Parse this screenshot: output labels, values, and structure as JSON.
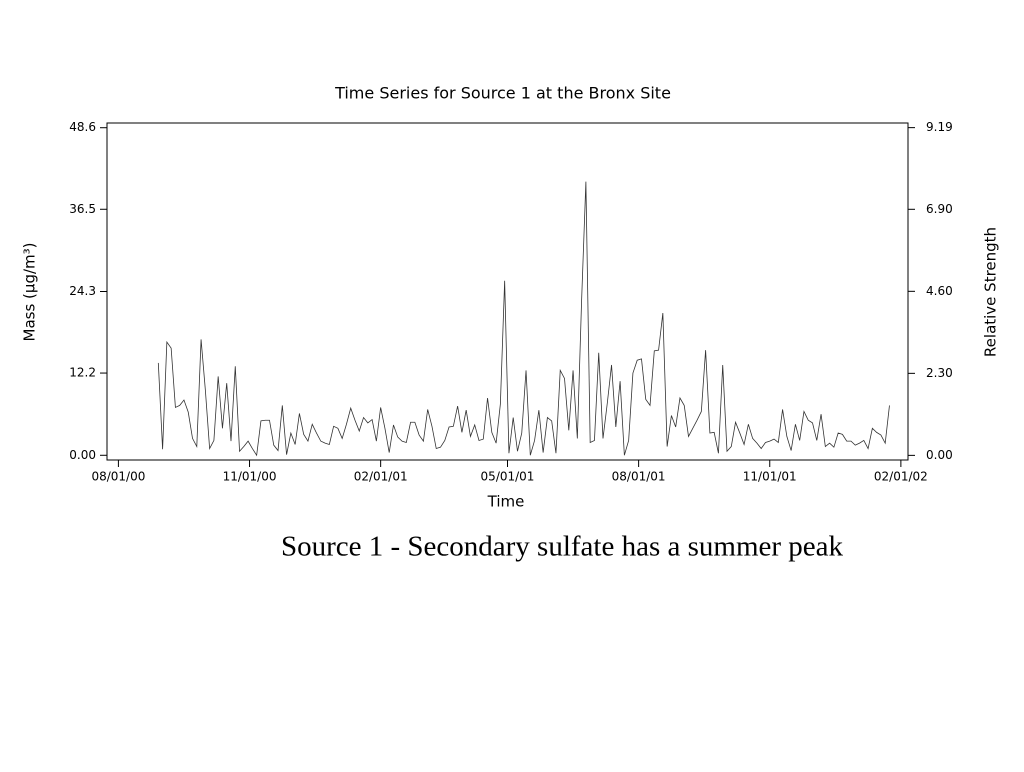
{
  "chart_data": {
    "type": "line",
    "title": "Time Series for Source 1 at the Bronx Site",
    "x_label": "Time",
    "y_label": "Mass (μg/m³)",
    "y2_label": "Relative Strength",
    "color": "#333333",
    "xlim": [
      "2000-07-24",
      "2002-02-06"
    ],
    "xticks": [
      {
        "value": "2000-08-01",
        "label": "08/01/00"
      },
      {
        "value": "2000-11-01",
        "label": "11/01/00"
      },
      {
        "value": "2001-02-01",
        "label": "02/01/01"
      },
      {
        "value": "2001-05-01",
        "label": "05/01/01"
      },
      {
        "value": "2001-08-01",
        "label": "08/01/01"
      },
      {
        "value": "2001-11-01",
        "label": "11/01/01"
      },
      {
        "value": "2002-02-01",
        "label": "02/01/02"
      }
    ],
    "ylim": [
      -0.7,
      49.3
    ],
    "yticks": [
      {
        "value": 0,
        "label": "0.00"
      },
      12.2,
      24.3,
      36.5,
      48.6
    ],
    "y2lim": [
      -0.13,
      9.32
    ],
    "y2ticks": [
      {
        "value": 0,
        "label": "0.00"
      },
      {
        "value": 2.3,
        "label": "2.30"
      },
      {
        "value": 4.6,
        "label": "4.60"
      },
      {
        "value": 6.9,
        "label": "6.90"
      },
      9.19
    ],
    "x": [
      "2000-08-29",
      "2000-09-01",
      "2000-09-04",
      "2000-09-07",
      "2000-09-10",
      "2000-09-13",
      "2000-09-16",
      "2000-09-19",
      "2000-09-22",
      "2000-09-25",
      "2000-09-28",
      "2000-10-01",
      "2000-10-04",
      "2000-10-07",
      "2000-10-10",
      "2000-10-13",
      "2000-10-16",
      "2000-10-19",
      "2000-10-22",
      "2000-10-25",
      "2000-10-28",
      "2000-10-31",
      "2000-11-03",
      "2000-11-06",
      "2000-11-09",
      "2000-11-12",
      "2000-11-15",
      "2000-11-18",
      "2000-11-21",
      "2000-11-24",
      "2000-11-27",
      "2000-11-30",
      "2000-12-03",
      "2000-12-06",
      "2000-12-09",
      "2000-12-12",
      "2000-12-15",
      "2000-12-18",
      "2000-12-21",
      "2000-12-24",
      "2000-12-27",
      "2000-12-30",
      "2001-01-02",
      "2001-01-05",
      "2001-01-08",
      "2001-01-11",
      "2001-01-14",
      "2001-01-17",
      "2001-01-20",
      "2001-01-23",
      "2001-01-26",
      "2001-01-29",
      "2001-02-01",
      "2001-02-04",
      "2001-02-07",
      "2001-02-10",
      "2001-02-13",
      "2001-02-16",
      "2001-02-19",
      "2001-02-22",
      "2001-02-25",
      "2001-02-28",
      "2001-03-03",
      "2001-03-06",
      "2001-03-09",
      "2001-03-12",
      "2001-03-15",
      "2001-03-18",
      "2001-03-21",
      "2001-03-24",
      "2001-03-27",
      "2001-03-30",
      "2001-04-02",
      "2001-04-05",
      "2001-04-08",
      "2001-04-11",
      "2001-04-14",
      "2001-04-17",
      "2001-04-20",
      "2001-04-23",
      "2001-04-26",
      "2001-04-29",
      "2001-05-02",
      "2001-05-05",
      "2001-05-08",
      "2001-05-11",
      "2001-05-14",
      "2001-05-17",
      "2001-05-20",
      "2001-05-23",
      "2001-05-26",
      "2001-05-29",
      "2001-06-01",
      "2001-06-04",
      "2001-06-07",
      "2001-06-10",
      "2001-06-13",
      "2001-06-16",
      "2001-06-19",
      "2001-06-22",
      "2001-06-25",
      "2001-06-28",
      "2001-07-01",
      "2001-07-04",
      "2001-07-07",
      "2001-07-10",
      "2001-07-13",
      "2001-07-16",
      "2001-07-19",
      "2001-07-22",
      "2001-07-25",
      "2001-07-28",
      "2001-07-31",
      "2001-08-03",
      "2001-08-06",
      "2001-08-09",
      "2001-08-12",
      "2001-08-15",
      "2001-08-18",
      "2001-08-21",
      "2001-08-24",
      "2001-08-27",
      "2001-08-30",
      "2001-09-02",
      "2001-09-05",
      "2001-09-08",
      "2001-09-11",
      "2001-09-14",
      "2001-09-17",
      "2001-09-20",
      "2001-09-23",
      "2001-09-26",
      "2001-09-29",
      "2001-10-02",
      "2001-10-05",
      "2001-10-08",
      "2001-10-11",
      "2001-10-14",
      "2001-10-17",
      "2001-10-20",
      "2001-10-23",
      "2001-10-26",
      "2001-10-29",
      "2001-11-01",
      "2001-11-04",
      "2001-11-07",
      "2001-11-10",
      "2001-11-13",
      "2001-11-16",
      "2001-11-19",
      "2001-11-22",
      "2001-11-25",
      "2001-11-28",
      "2001-12-01",
      "2001-12-04",
      "2001-12-07",
      "2001-12-10",
      "2001-12-13",
      "2001-12-16",
      "2001-12-19",
      "2001-12-22",
      "2001-12-25",
      "2001-12-28",
      "2001-12-31",
      "2002-01-03",
      "2002-01-06",
      "2002-01-09",
      "2002-01-12",
      "2002-01-15",
      "2002-01-18",
      "2002-01-21",
      "2002-01-24"
    ],
    "values": [
      13.7,
      0.9,
      16.8,
      15.9,
      7.1,
      7.4,
      8.2,
      6.4,
      2.5,
      1.3,
      17.2,
      9.7,
      1.0,
      2.2,
      11.7,
      4.0,
      10.7,
      2.1,
      13.2,
      0.6,
      1.3,
      2.1,
      1.0,
      0,
      5.1,
      5.2,
      5.2,
      1.5,
      0.7,
      7.4,
      0.1,
      3.3,
      1.6,
      6.2,
      3.1,
      2.1,
      4.6,
      3.3,
      2.1,
      1.8,
      1.6,
      4.3,
      4.0,
      2.5,
      4.6,
      7.0,
      5.2,
      3.6,
      5.6,
      4.8,
      5.3,
      2.1,
      7.1,
      4.0,
      0.4,
      4.5,
      2.7,
      2.1,
      1.9,
      4.9,
      4.9,
      3.0,
      2.1,
      6.8,
      4.3,
      1.0,
      1.2,
      2.2,
      4.2,
      4.3,
      7.3,
      3.4,
      6.7,
      2.8,
      4.5,
      2.2,
      2.4,
      8.5,
      3.4,
      1.8,
      7.6,
      25.9,
      0.3,
      5.6,
      0.6,
      3.3,
      12.6,
      0,
      2.2,
      6.7,
      0.4,
      5.6,
      5.1,
      0.3,
      12.6,
      11.4,
      3.7,
      12.6,
      2.5,
      23.0,
      40.6,
      1.9,
      2.2,
      15.2,
      2.5,
      7.7,
      13.4,
      4.2,
      11.0,
      0,
      2.2,
      12.2,
      14.1,
      14.3,
      8.3,
      7.4,
      15.5,
      15.6,
      21.1,
      1.3,
      5.9,
      4.2,
      8.5,
      7.4,
      2.8,
      4.0,
      5.2,
      6.5,
      15.6,
      3.3,
      3.4,
      0.3,
      13.4,
      0.6,
      1.3,
      4.9,
      3.3,
      1.6,
      4.6,
      2.5,
      1.8,
      1.0,
      1.9,
      2.1,
      2.4,
      1.9,
      6.8,
      2.8,
      0.7,
      4.6,
      2.2,
      6.5,
      5.2,
      4.8,
      2.2,
      6.1,
      1.3,
      1.8,
      1.2,
      3.3,
      3.1,
      2.1,
      2.1,
      1.5,
      1.8,
      2.2,
      1.0,
      4.0,
      3.4,
      3.0,
      1.8,
      7.4
    ]
  },
  "caption": "Source 1 - Secondary sulfate has a summer peak"
}
